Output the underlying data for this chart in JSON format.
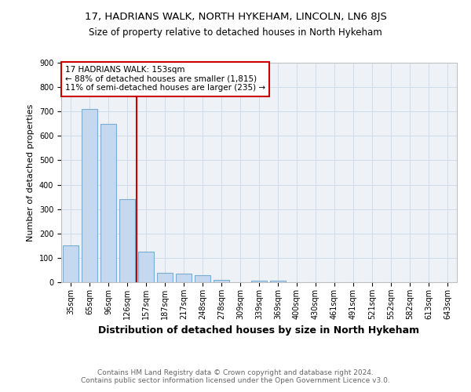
{
  "title": "17, HADRIANS WALK, NORTH HYKEHAM, LINCOLN, LN6 8JS",
  "subtitle": "Size of property relative to detached houses in North Hykeham",
  "xlabel": "Distribution of detached houses by size in North Hykeham",
  "ylabel": "Number of detached properties",
  "footer": "Contains HM Land Registry data © Crown copyright and database right 2024.\nContains public sector information licensed under the Open Government Licence v3.0.",
  "categories": [
    "35sqm",
    "65sqm",
    "96sqm",
    "126sqm",
    "157sqm",
    "187sqm",
    "217sqm",
    "248sqm",
    "278sqm",
    "309sqm",
    "339sqm",
    "369sqm",
    "400sqm",
    "430sqm",
    "461sqm",
    "491sqm",
    "521sqm",
    "552sqm",
    "582sqm",
    "613sqm",
    "643sqm"
  ],
  "values": [
    150,
    710,
    650,
    340,
    125,
    40,
    35,
    30,
    10,
    0,
    8,
    8,
    0,
    0,
    0,
    0,
    0,
    0,
    0,
    0,
    0
  ],
  "bar_color": "#c5d8ed",
  "bar_edge_color": "#7aaed0",
  "bar_linewidth": 0.8,
  "vline_x_index": 3,
  "vline_color": "#cc0000",
  "annotation_text": "17 HADRIANS WALK: 153sqm\n← 88% of detached houses are smaller (1,815)\n11% of semi-detached houses are larger (235) →",
  "ylim": [
    0,
    900
  ],
  "yticks": [
    0,
    100,
    200,
    300,
    400,
    500,
    600,
    700,
    800,
    900
  ],
  "grid_color": "#d0dce8",
  "bg_color": "#eef2f7",
  "title_fontsize": 9.5,
  "subtitle_fontsize": 8.5,
  "xlabel_fontsize": 9,
  "ylabel_fontsize": 8,
  "tick_fontsize": 7,
  "footer_fontsize": 6.5,
  "ann_fontsize": 7.5
}
